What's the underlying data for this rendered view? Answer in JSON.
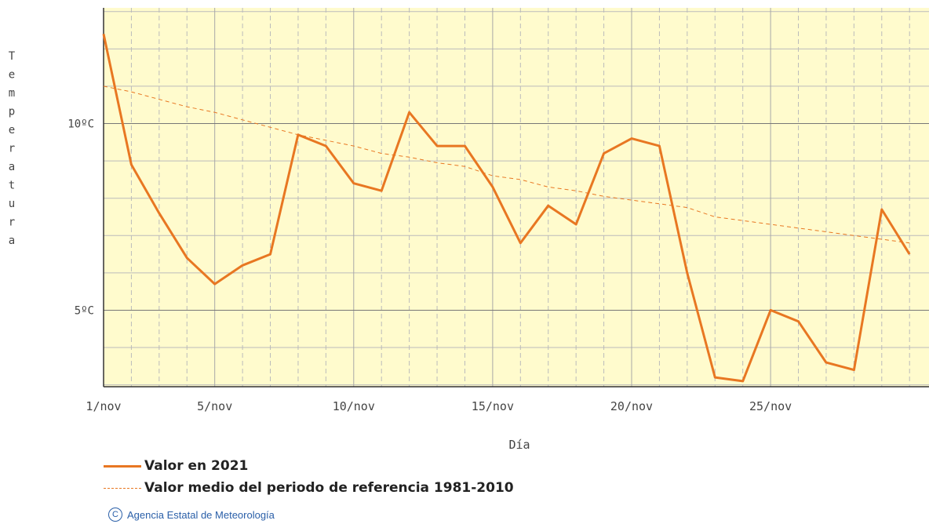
{
  "chart_data": {
    "type": "line",
    "ylabel": "Temperatura",
    "xlabel": "Día",
    "x": [
      1,
      2,
      3,
      4,
      5,
      6,
      7,
      8,
      9,
      10,
      11,
      12,
      13,
      14,
      15,
      16,
      17,
      18,
      19,
      20,
      21,
      22,
      23,
      24,
      25,
      26,
      27,
      28,
      29,
      30
    ],
    "xticks": [
      {
        "x": 1,
        "label": "1/nov"
      },
      {
        "x": 5,
        "label": "5/nov"
      },
      {
        "x": 10,
        "label": "10/nov"
      },
      {
        "x": 15,
        "label": "15/nov"
      },
      {
        "x": 20,
        "label": "20/nov"
      },
      {
        "x": 25,
        "label": "25/nov"
      }
    ],
    "yticks": [
      {
        "y": 5,
        "label": "5ºC"
      },
      {
        "y": 10,
        "label": "10ºC"
      }
    ],
    "xlim": [
      1,
      30.7
    ],
    "ylim": [
      2.95,
      13.1
    ],
    "grid": true,
    "series": [
      {
        "name": "Valor en 2021",
        "style": "solid",
        "color": "#E87722",
        "values": [
          12.4,
          8.9,
          7.6,
          6.4,
          5.7,
          6.2,
          6.5,
          9.7,
          9.4,
          8.4,
          8.2,
          10.3,
          9.4,
          9.4,
          8.3,
          6.8,
          7.8,
          7.3,
          9.2,
          9.6,
          9.4,
          6.0,
          3.2,
          3.1,
          5.0,
          4.7,
          3.6,
          3.4,
          7.7,
          6.5
        ]
      },
      {
        "name": "Valor medio del periodo de referencia 1981-2010",
        "style": "dashed",
        "color": "#E87722",
        "values": [
          11.0,
          10.85,
          10.65,
          10.45,
          10.3,
          10.1,
          9.9,
          9.7,
          9.55,
          9.4,
          9.2,
          9.1,
          8.95,
          8.85,
          8.6,
          8.5,
          8.3,
          8.2,
          8.05,
          7.95,
          7.85,
          7.75,
          7.5,
          7.4,
          7.3,
          7.2,
          7.1,
          7.0,
          6.9,
          6.8
        ]
      }
    ],
    "colors": {
      "plot_background": "#FFFBCD",
      "grid_major": "#777777",
      "grid_minor": "#bbbbbb",
      "axis": "#333333"
    }
  },
  "legend": {
    "items": [
      {
        "label": "Valor en 2021"
      },
      {
        "label": "Valor medio del periodo de referencia 1981-2010"
      }
    ]
  },
  "credit": {
    "icon": "copyright-icon",
    "text": "Agencia Estatal de Meteorología"
  }
}
